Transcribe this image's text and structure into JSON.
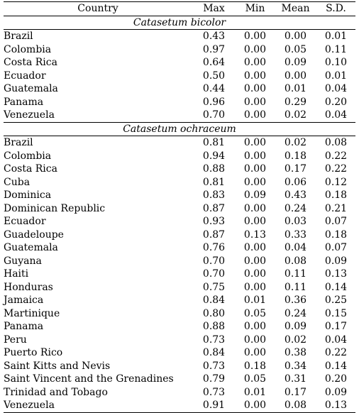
{
  "columns": {
    "country": "Country",
    "max": "Max",
    "min": "Min",
    "mean": "Mean",
    "sd": "S.D."
  },
  "groups": [
    {
      "species": "Catasetum bicolor",
      "rows": [
        [
          "Brazil",
          "0.43",
          "0.00",
          "0.00",
          "0.01"
        ],
        [
          "Colombia",
          "0.97",
          "0.00",
          "0.05",
          "0.11"
        ],
        [
          "Costa Rica",
          "0.64",
          "0.00",
          "0.09",
          "0.10"
        ],
        [
          "Ecuador",
          "0.50",
          "0.00",
          "0.00",
          "0.01"
        ],
        [
          "Guatemala",
          "0.44",
          "0.00",
          "0.01",
          "0.04"
        ],
        [
          "Panama",
          "0.96",
          "0.00",
          "0.29",
          "0.20"
        ],
        [
          "Venezuela",
          "0.70",
          "0.00",
          "0.02",
          "0.04"
        ]
      ]
    },
    {
      "species": "Catasetum ochraceum",
      "rows": [
        [
          "Brazil",
          "0.81",
          "0.00",
          "0.02",
          "0.08"
        ],
        [
          "Colombia",
          "0.94",
          "0.00",
          "0.18",
          "0.22"
        ],
        [
          "Costa Rica",
          "0.88",
          "0.00",
          "0.17",
          "0.22"
        ],
        [
          "Cuba",
          "0.81",
          "0.00",
          "0.06",
          "0.12"
        ],
        [
          "Dominica",
          "0.83",
          "0.09",
          "0.43",
          "0.18"
        ],
        [
          "Dominican Republic",
          "0.87",
          "0.00",
          "0.24",
          "0.21"
        ],
        [
          "Ecuador",
          "0.93",
          "0.00",
          "0.03",
          "0.07"
        ],
        [
          "Guadeloupe",
          "0.87",
          "0.13",
          "0.33",
          "0.18"
        ],
        [
          "Guatemala",
          "0.76",
          "0.00",
          "0.04",
          "0.07"
        ],
        [
          "Guyana",
          "0.70",
          "0.00",
          "0.08",
          "0.09"
        ],
        [
          "Haiti",
          "0.70",
          "0.00",
          "0.11",
          "0.13"
        ],
        [
          "Honduras",
          "0.75",
          "0.00",
          "0.11",
          "0.14"
        ],
        [
          "Jamaica",
          "0.84",
          "0.01",
          "0.36",
          "0.25"
        ],
        [
          "Martinique",
          "0.80",
          "0.05",
          "0.24",
          "0.15"
        ],
        [
          "Panama",
          "0.88",
          "0.00",
          "0.09",
          "0.17"
        ],
        [
          "Peru",
          "0.73",
          "0.00",
          "0.02",
          "0.04"
        ],
        [
          "Puerto Rico",
          "0.84",
          "0.00",
          "0.38",
          "0.22"
        ],
        [
          "Saint Kitts and Nevis",
          "0.73",
          "0.18",
          "0.34",
          "0.14"
        ],
        [
          "Saint Vincent and the Grenadines",
          "0.79",
          "0.05",
          "0.31",
          "0.20"
        ],
        [
          "Trinidad and Tobago",
          "0.73",
          "0.01",
          "0.17",
          "0.09"
        ],
        [
          "Venezuela",
          "0.91",
          "0.00",
          "0.08",
          "0.13"
        ]
      ]
    }
  ]
}
